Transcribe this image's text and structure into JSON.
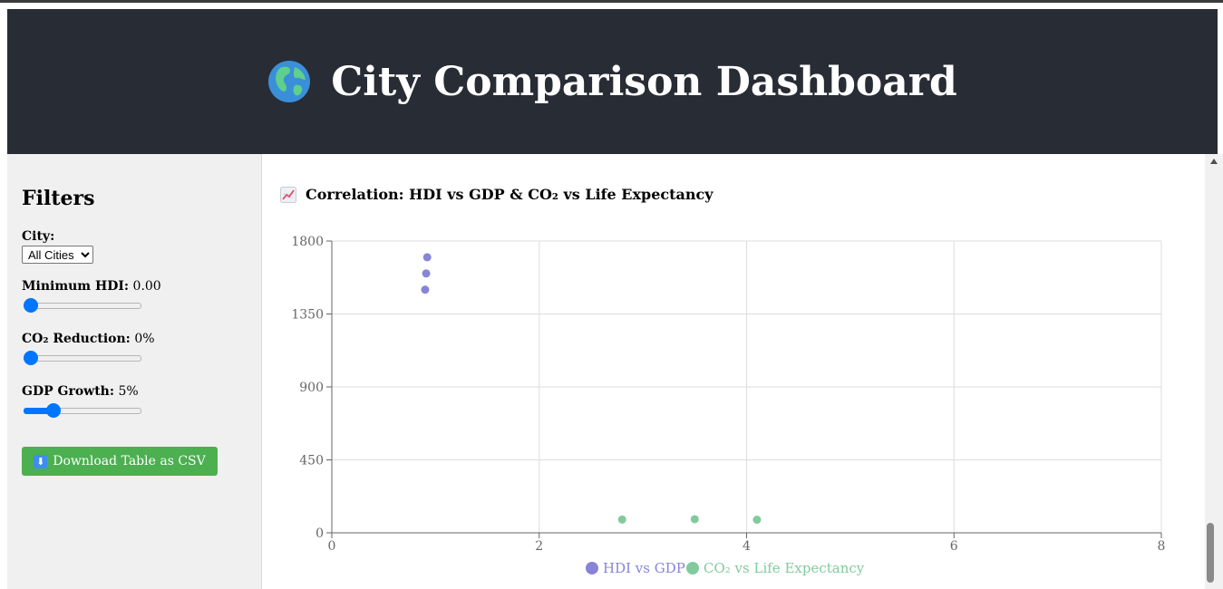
{
  "header": {
    "title": "City Comparison Dashboard",
    "icon": "globe-icon"
  },
  "sidebar": {
    "heading": "Filters",
    "city": {
      "label": "City:",
      "selected": "All Cities"
    },
    "min_hdi": {
      "label": "Minimum HDI:",
      "value": "0.00",
      "fraction": 0.0
    },
    "co2_reduction": {
      "label": "CO₂ Reduction:",
      "value": "0%",
      "fraction": 0.0
    },
    "gdp_growth": {
      "label": "GDP Growth:",
      "value": "5%",
      "fraction": 0.22
    },
    "download": {
      "label": "Download Table as CSV",
      "icon": "download-icon"
    }
  },
  "chart": {
    "title": "Correlation: HDI vs GDP & CO₂ vs Life Expectancy",
    "icon": "chart-increasing-icon"
  },
  "chart_data": {
    "type": "scatter",
    "xlim": [
      0,
      8
    ],
    "ylim": [
      0,
      1800
    ],
    "x_ticks": [
      "0",
      "2",
      "4",
      "6",
      "8"
    ],
    "y_ticks": [
      "0",
      "450",
      "900",
      "1350",
      "1800"
    ],
    "grid": true,
    "legend": "bottom",
    "series": [
      {
        "name": "HDI vs GDP",
        "color": "#8884d8",
        "points": [
          [
            0.92,
            1700
          ],
          [
            0.91,
            1600
          ],
          [
            0.9,
            1500
          ]
        ]
      },
      {
        "name": "CO₂ vs Life Expectancy",
        "color": "#82ca9d",
        "points": [
          [
            2.8,
            82
          ],
          [
            3.5,
            84
          ],
          [
            4.1,
            81
          ]
        ]
      }
    ]
  }
}
